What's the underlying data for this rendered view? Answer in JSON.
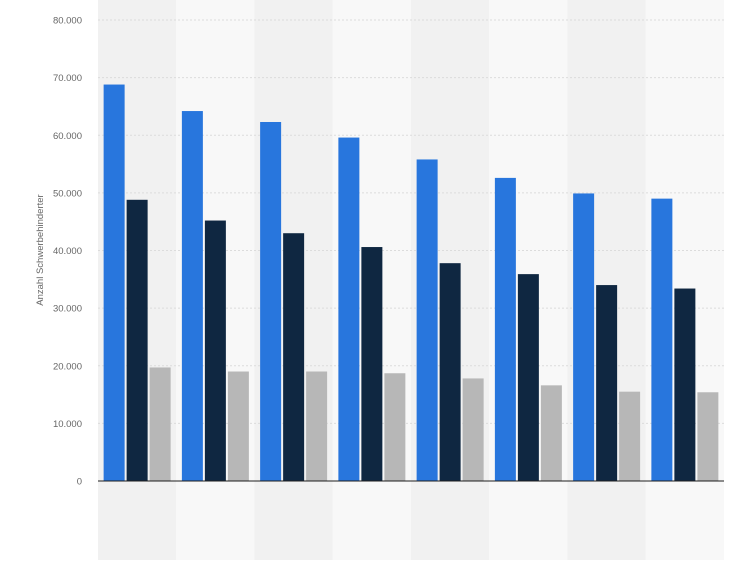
{
  "chart_data": {
    "type": "bar",
    "title": "",
    "xlabel": "",
    "ylabel": "Anzahl Schwerbehinderter",
    "ylim": [
      0,
      80000
    ],
    "yticks": [
      0,
      10000,
      20000,
      30000,
      40000,
      50000,
      60000,
      70000,
      80000
    ],
    "ytick_labels": [
      "0",
      "10.000",
      "20.000",
      "30.000",
      "40.000",
      "50.000",
      "60.000",
      "70.000",
      "80.000"
    ],
    "grid": true,
    "categories": [
      "",
      "",
      "",
      "",
      "",
      "",
      "",
      ""
    ],
    "series": [
      {
        "color": "#2876dd",
        "values": [
          68800,
          64200,
          62300,
          59600,
          55800,
          52600,
          49900,
          49000
        ]
      },
      {
        "color": "#0f2741",
        "values": [
          48800,
          45200,
          43000,
          40600,
          37800,
          35900,
          34000,
          33400
        ]
      },
      {
        "color": "#b7b7b7",
        "values": [
          19700,
          19000,
          19000,
          18700,
          17800,
          16600,
          15500,
          15400
        ]
      }
    ]
  }
}
